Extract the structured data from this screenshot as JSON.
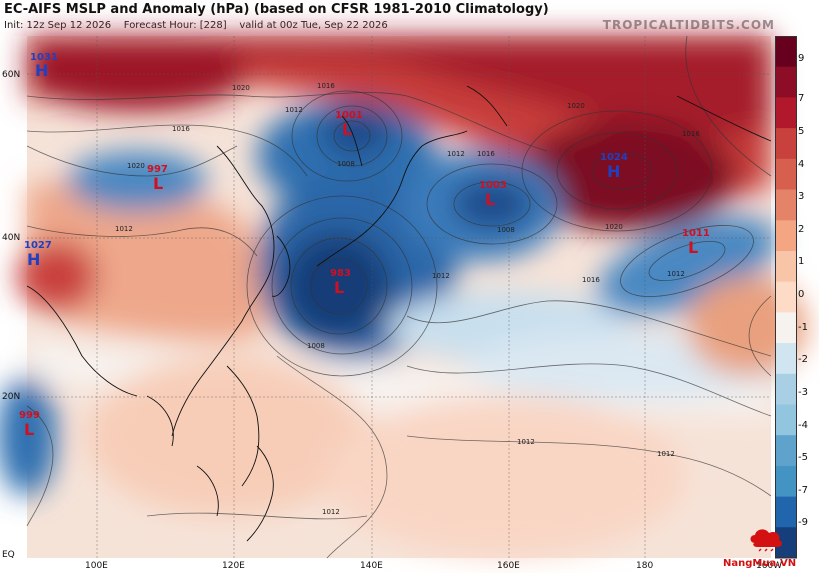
{
  "header": {
    "title": "EC-AIFS MSLP and Anomaly (hPa) (based on CFSR 1981-2010 Climatology)",
    "init": "Init: 12z Sep 12 2026",
    "forecast_hour": "Forecast Hour: [228]",
    "valid": "valid at 00z Tue, Sep 22 2026",
    "brand": "TROPICALTIDBITS.COM"
  },
  "colorbar": {
    "labels": [
      "9",
      "7",
      "5",
      "4",
      "3",
      "2",
      "1",
      "0",
      "-1",
      "-2",
      "-3",
      "-4",
      "-5",
      "-7",
      "-9"
    ],
    "colors": [
      "#67001f",
      "#8c0d25",
      "#b2182b",
      "#c9413c",
      "#d6604d",
      "#e58368",
      "#f4a582",
      "#f8c5a8",
      "#fddbc7",
      "#f5f2ef",
      "#d1e5f0",
      "#a9cfe5",
      "#92c5de",
      "#5fa3cc",
      "#4393c3",
      "#2166ac",
      "#153e7a"
    ]
  },
  "axes": {
    "lat": [
      "60N",
      "40N",
      "20N",
      "EQ"
    ],
    "lon": [
      "100E",
      "120E",
      "140E",
      "160E",
      "180",
      "160W"
    ]
  },
  "systems": [
    {
      "type": "H",
      "value": "1031",
      "color": "#2040c0"
    },
    {
      "type": "H",
      "value": "1027",
      "color": "#2040c0"
    },
    {
      "type": "L",
      "value": "997",
      "color": "#d01020"
    },
    {
      "type": "L",
      "value": "1001",
      "color": "#d01020"
    },
    {
      "type": "L",
      "value": "1003",
      "color": "#d01020"
    },
    {
      "type": "L",
      "value": "983",
      "color": "#d01020"
    },
    {
      "type": "H",
      "value": "1024",
      "color": "#2040c0"
    },
    {
      "type": "L",
      "value": "1011",
      "color": "#d01020"
    },
    {
      "type": "L",
      "value": "999",
      "color": "#d01020"
    }
  ],
  "isobar_labels": [
    "1020",
    "1016",
    "1012",
    "1008",
    "1020",
    "1016",
    "1012",
    "1008",
    "1012",
    "1016",
    "1020",
    "1012",
    "1008",
    "1012",
    "1016",
    "1012",
    "1012",
    "1012",
    "1020",
    "1016"
  ],
  "logo": {
    "text": "NangMua.VN"
  }
}
